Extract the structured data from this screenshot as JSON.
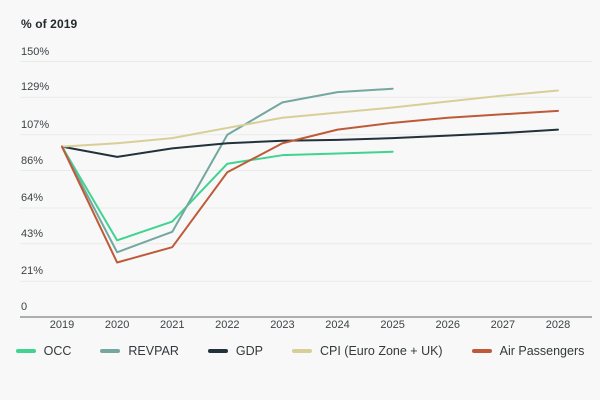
{
  "header": {
    "title": "% of 2019"
  },
  "colors": {
    "background": "#f7f8f7",
    "gridline": "#e9ebe9",
    "axis_line": "#60666a",
    "tick_text": "#3d4346",
    "occ": "#40d392",
    "revpar": "#74a79f",
    "gdp": "#23313b",
    "cpi": "#d8cf98",
    "air_passengers": "#bf5a39"
  },
  "chart_data": {
    "type": "line",
    "title": "% of 2019",
    "xlabel": "",
    "ylabel": "% of 2019",
    "x": [
      2019,
      2020,
      2021,
      2022,
      2023,
      2024,
      2025,
      2026,
      2027,
      2028
    ],
    "ylim": [
      0,
      150
    ],
    "yticks": [
      {
        "value": 0,
        "label": "0"
      },
      {
        "value": 21,
        "label": "21%"
      },
      {
        "value": 43,
        "label": "43%"
      },
      {
        "value": 64,
        "label": "64%"
      },
      {
        "value": 86,
        "label": "86%"
      },
      {
        "value": 107,
        "label": "107%"
      },
      {
        "value": 129,
        "label": "129%"
      },
      {
        "value": 150,
        "label": "150%"
      }
    ],
    "grid": true,
    "legend_position": "bottom",
    "series": [
      {
        "name": "OCC",
        "color": "#40d392",
        "values": [
          100,
          45,
          56,
          90,
          95,
          96,
          97
        ]
      },
      {
        "name": "REVPAR",
        "color": "#74a79f",
        "values": [
          100,
          38,
          50,
          107,
          126,
          132,
          134
        ]
      },
      {
        "name": "GDP",
        "color": "#23313b",
        "values": [
          100,
          94,
          99,
          102,
          103.5,
          104,
          105,
          106.5,
          108,
          110
        ]
      },
      {
        "name": "CPI (Euro Zone + UK)",
        "color": "#d8cf98",
        "values": [
          100,
          102,
          105,
          111,
          117,
          120,
          123,
          126.5,
          130,
          133
        ]
      },
      {
        "name": "Air Passengers",
        "color": "#bf5a39",
        "values": [
          100,
          32,
          41,
          85,
          102,
          110,
          114,
          117,
          119,
          121
        ]
      }
    ]
  }
}
